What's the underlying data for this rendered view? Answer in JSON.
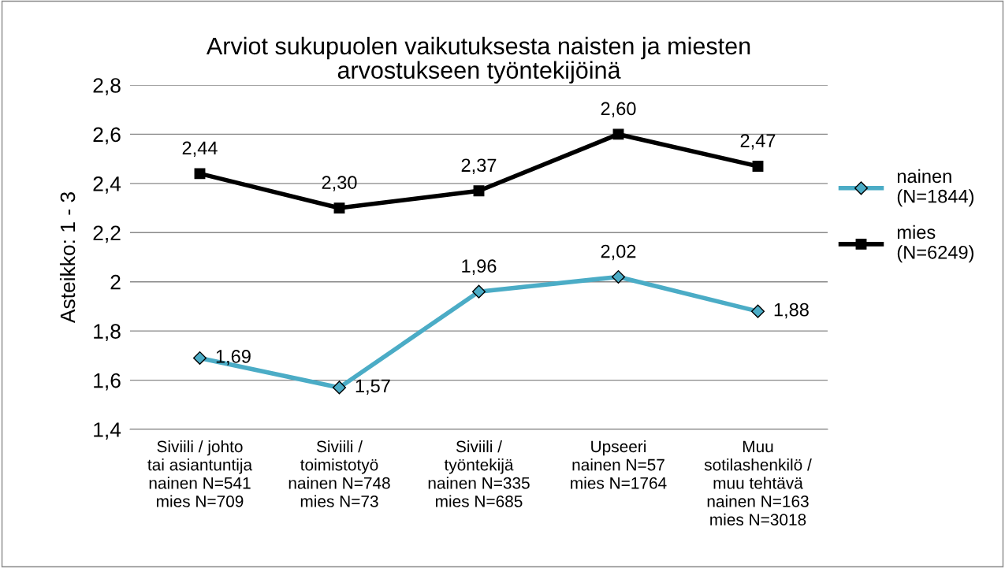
{
  "chart_data": {
    "type": "line",
    "title": "Arviot sukupuolen vaikutuksesta naisten ja miesten\narvostukseen työntekijöinä",
    "ylabel": "Asteikko: 1 - 3",
    "categories": [
      "Siviili / johto\ntai asiantuntija\nnainen N=541\nmies N=709",
      "Siviili /\ntoimistotyö\nnainen N=748\nmies N=73",
      "Siviili /\ntyöntekijä\nnainen N=335\nmies N=685",
      "Upseeri\nnainen N=57\nmies N=1764",
      "Muu\nsotilashenkilö /\nmuu tehtävä\nnainen N=163\nmies N=3018"
    ],
    "series": [
      {
        "name": "nainen\n(N=1844)",
        "color": "#4bacc6",
        "marker": "diamond",
        "values": [
          1.69,
          1.57,
          1.96,
          2.02,
          1.88
        ],
        "value_labels": [
          "1,69",
          "1,57",
          "1,96",
          "2,02",
          "1,88"
        ]
      },
      {
        "name": "mies\n(N=6249)",
        "color": "#000000",
        "marker": "square",
        "values": [
          2.44,
          2.3,
          2.37,
          2.6,
          2.47
        ],
        "value_labels": [
          "2,44",
          "2,30",
          "2,37",
          "2,60",
          "2,47"
        ]
      }
    ],
    "ylim": [
      1.4,
      2.8
    ],
    "yticks": [
      {
        "value": 1.4,
        "label": "1,4"
      },
      {
        "value": 1.6,
        "label": "1,6"
      },
      {
        "value": 1.8,
        "label": "1,8"
      },
      2,
      {
        "value": 2.2,
        "label": "2,2"
      },
      {
        "value": 2.4,
        "label": "2,4"
      },
      {
        "value": 2.6,
        "label": "2,6"
      },
      {
        "value": 2.8,
        "label": "2,8"
      }
    ],
    "grid": "y",
    "legend": "right",
    "line_style": "solid"
  }
}
